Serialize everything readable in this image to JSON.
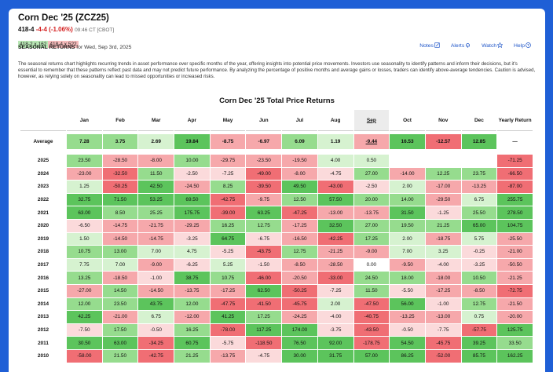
{
  "header": {
    "title": "Corn Dec '25 (ZCZ25)",
    "last": "418-4",
    "change": "-4-4 (-1.06%)",
    "time": "09:46 CT [CBOT]",
    "bid": "418-2 x 162",
    "ask": "418-4 x 522",
    "section": "SEASONAL RETURNS",
    "section_date": "for Wed, Sep 3rd, 2025"
  },
  "toolbar": {
    "notes": "Notes",
    "alerts": "Alerts",
    "watch": "Watch",
    "help": "Help"
  },
  "description": "The seasonal returns chart highlights recurring trends in asset performance over specific months of the year, offering insights into potential price movements. Investors use seasonality to identify patterns and inform their decisions, but it's essential to remember that these patterns reflect past data and may not predict future performance. By analyzing the percentage of positive months and average gains or losses, traders can identify above-average tendencies. Caution is advised, however, as relying solely on seasonality can lead to missed opportunities or increased risks.",
  "chart_title": "Corn Dec '25 Total Price Returns",
  "columns": [
    "Jan",
    "Feb",
    "Mar",
    "Apr",
    "May",
    "Jun",
    "Jul",
    "Aug",
    "Sep",
    "Oct",
    "Nov",
    "Dec",
    "Yearly Return"
  ],
  "selected_column": "Sep",
  "average": {
    "label": "Average",
    "values": [
      "7.28",
      "3.75",
      "2.69",
      "19.84",
      "-8.75",
      "-6.97",
      "6.09",
      "1.19",
      "-9.44",
      "16.53",
      "-12.57",
      "12.85",
      "—"
    ]
  },
  "rows": [
    {
      "year": "2025",
      "values": [
        "23.50",
        "-28.50",
        "-8.00",
        "10.00",
        "-29.75",
        "-23.50",
        "-19.50",
        "4.00",
        "0.50",
        "",
        "",
        "",
        "-71.25"
      ]
    },
    {
      "year": "2024",
      "values": [
        "-23.00",
        "-32.50",
        "11.50",
        "-2.50",
        "-7.25",
        "-49.00",
        "-8.00",
        "-4.75",
        "27.00",
        "-14.00",
        "12.25",
        "23.75",
        "-66.50"
      ]
    },
    {
      "year": "2023",
      "values": [
        "1.25",
        "-50.25",
        "42.50",
        "-24.50",
        "8.25",
        "-39.50",
        "49.50",
        "-43.00",
        "-2.50",
        "2.00",
        "-17.00",
        "-13.25",
        "-87.00"
      ]
    },
    {
      "year": "2022",
      "values": [
        "32.75",
        "71.50",
        "53.25",
        "69.50",
        "-42.75",
        "-9.75",
        "12.50",
        "57.50",
        "20.00",
        "14.00",
        "-29.50",
        "6.75",
        "255.75"
      ]
    },
    {
      "year": "2021",
      "values": [
        "63.00",
        "8.50",
        "25.25",
        "175.75",
        "-39.00",
        "63.25",
        "-47.25",
        "-13.00",
        "-13.75",
        "31.50",
        "-1.25",
        "25.50",
        "278.50"
      ]
    },
    {
      "year": "2020",
      "values": [
        "-6.50",
        "-14.75",
        "-21.75",
        "-29.25",
        "16.25",
        "12.75",
        "-17.25",
        "32.50",
        "27.00",
        "19.50",
        "21.25",
        "65.00",
        "104.75"
      ]
    },
    {
      "year": "2019",
      "values": [
        "1.50",
        "-14.50",
        "-14.75",
        "-3.25",
        "64.75",
        "-6.75",
        "-16.50",
        "-42.25",
        "17.25",
        "2.00",
        "-18.75",
        "5.75",
        "-25.50"
      ]
    },
    {
      "year": "2018",
      "values": [
        "10.75",
        "13.00",
        "7.00",
        "4.75",
        "-5.25",
        "-43.75",
        "12.75",
        "-21.25",
        "-9.00",
        "7.00",
        "3.25",
        "-0.25",
        "-21.00"
      ]
    },
    {
      "year": "2017",
      "values": [
        "7.75",
        "7.00",
        "-9.00",
        "-6.25",
        "5.25",
        "-1.50",
        "-8.50",
        "-28.50",
        "0.00",
        "-9.50",
        "-4.00",
        "-3.25",
        "-50.50"
      ]
    },
    {
      "year": "2016",
      "values": [
        "13.25",
        "-18.50",
        "-1.00",
        "38.75",
        "10.75",
        "-46.00",
        "-20.50",
        "-33.00",
        "24.50",
        "18.00",
        "-18.00",
        "10.50",
        "-21.25"
      ]
    },
    {
      "year": "2015",
      "values": [
        "-27.00",
        "14.50",
        "-14.50",
        "-13.75",
        "-17.25",
        "62.50",
        "-50.25",
        "-7.25",
        "11.50",
        "-5.50",
        "-17.25",
        "-8.50",
        "-72.75"
      ]
    },
    {
      "year": "2014",
      "values": [
        "12.00",
        "23.50",
        "43.75",
        "12.00",
        "-47.75",
        "-41.50",
        "-45.75",
        "2.00",
        "-47.50",
        "56.00",
        "-1.00",
        "12.75",
        "-21.50"
      ]
    },
    {
      "year": "2013",
      "values": [
        "42.25",
        "-21.00",
        "6.75",
        "-12.00",
        "41.25",
        "17.25",
        "-24.25",
        "-4.00",
        "-40.75",
        "-13.25",
        "-13.00",
        "0.75",
        "-20.00"
      ]
    },
    {
      "year": "2012",
      "values": [
        "-7.50",
        "17.50",
        "-0.50",
        "16.25",
        "-78.00",
        "117.25",
        "174.00",
        "-3.75",
        "-43.50",
        "-0.50",
        "-7.75",
        "-57.75",
        "125.75"
      ]
    },
    {
      "year": "2011",
      "values": [
        "30.50",
        "63.00",
        "-34.25",
        "60.75",
        "-5.75",
        "-118.50",
        "76.50",
        "92.00",
        "-178.75",
        "54.50",
        "-45.75",
        "39.25",
        "33.50"
      ]
    },
    {
      "year": "2010",
      "values": [
        "-58.00",
        "21.50",
        "-42.75",
        "21.25",
        "-13.75",
        "-4.75",
        "30.00",
        "31.75",
        "57.00",
        "86.25",
        "-52.00",
        "85.75",
        "162.25"
      ]
    }
  ],
  "colors": {
    "pos_strong": "#5cc45c",
    "pos_mid": "#96dc8e",
    "pos_light": "#d6f2d0",
    "neg_strong": "#f06e74",
    "neg_mid": "#f6a8ab",
    "neg_light": "#fbdadb",
    "neutral": "#ffffff"
  }
}
